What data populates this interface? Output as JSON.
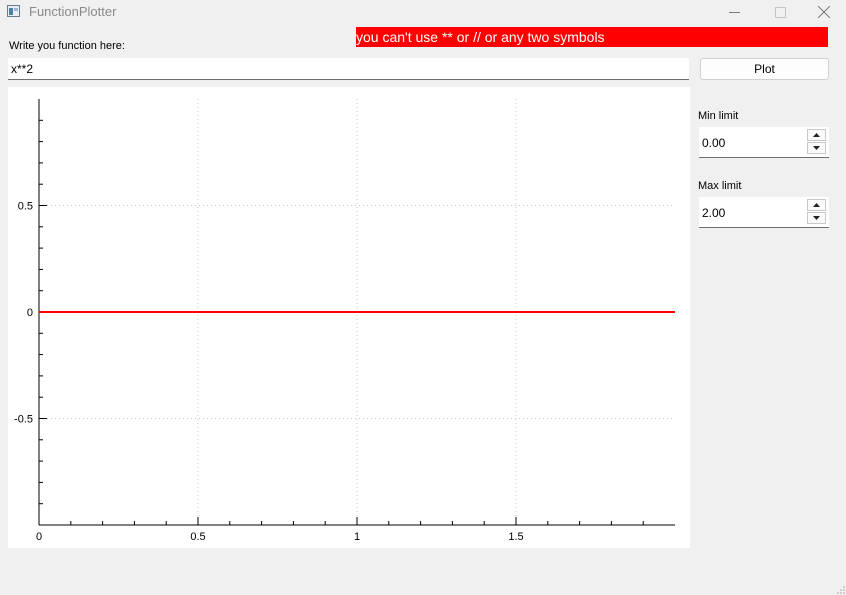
{
  "window": {
    "title": "FunctionPlotter",
    "icons": {
      "app": "app-window-icon",
      "minimize": "minimize-icon",
      "maximize": "maximize-icon",
      "close": "close-icon"
    }
  },
  "prompt_label": "Write you function here:",
  "error_message": "you can't use ** or // or any two symbols",
  "function_input": {
    "value": "x**2"
  },
  "plot_button": {
    "label": "Plot"
  },
  "min_limit": {
    "label": "Min limit",
    "value": "0.00"
  },
  "max_limit": {
    "label": "Max limit",
    "value": "2.00"
  },
  "colors": {
    "error_banner": "#ff0000",
    "plot_line": "#ff0000",
    "window_bg": "#f0f0f0"
  },
  "chart_data": {
    "type": "line",
    "title": "",
    "xlabel": "",
    "ylabel": "",
    "xlim": [
      0,
      2
    ],
    "ylim": [
      -1,
      1
    ],
    "x_ticks": [
      "0",
      "0.5",
      "1",
      "1.5"
    ],
    "y_ticks": [
      "0.5",
      "0",
      "-0.5"
    ],
    "grid": true,
    "series": [
      {
        "color": "#ff0000",
        "x": [
          0,
          2
        ],
        "y": [
          0,
          0
        ]
      }
    ]
  }
}
